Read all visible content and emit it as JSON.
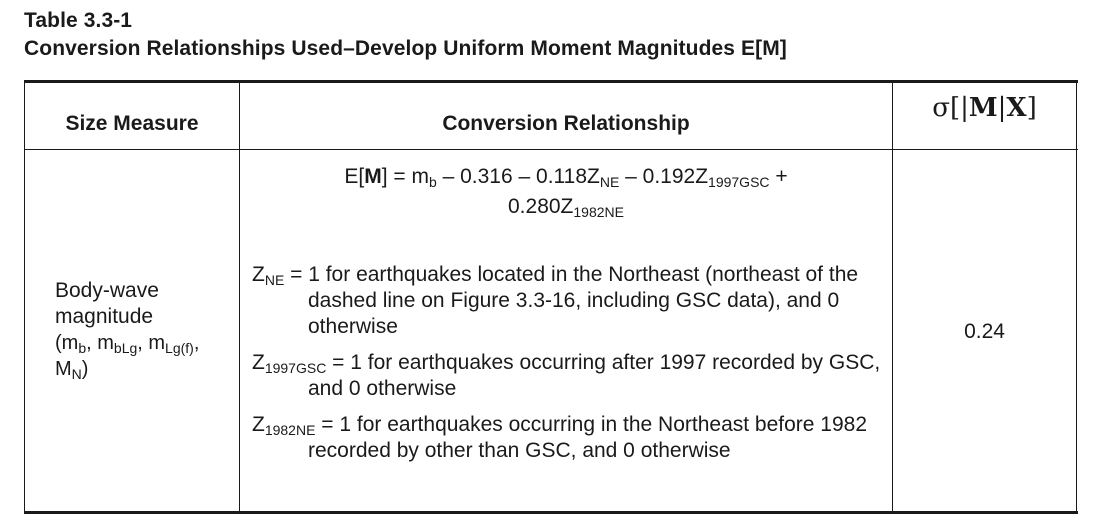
{
  "caption": {
    "table_number": "Table 3.3-1",
    "title": "Conversion Relationships Used–Develop Uniform Moment Magnitudes E[M]"
  },
  "header": {
    "col_size_measure": "Size Measure",
    "col_conversion": "Conversion Relationship",
    "col_sigma": "σ[|M|X]"
  },
  "row": {
    "size_measure": "Body-wave magnitude (mb, mbLg, mLg(f), MN)",
    "formula": "E[M] = mb – 0.316 – 0.118ZNE – 0.192Z1997GSC + 0.280Z1982NE",
    "definitions": [
      "ZNE = 1 for earthquakes located in the Northeast (northeast of the dashed line on Figure 3.3-16, including GSC data), and 0 otherwise",
      "Z1997GSC = 1 for earthquakes occurring after 1997 recorded by GSC, and 0 otherwise",
      "Z1982NE = 1 for earthquakes occurring in the Northeast before 1982 recorded by other than GSC, and 0 otherwise"
    ],
    "sigma": "0.24"
  }
}
